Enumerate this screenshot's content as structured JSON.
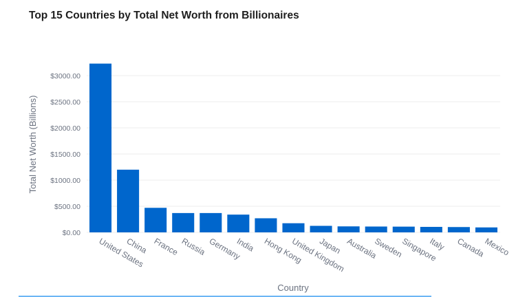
{
  "chart_data": {
    "type": "bar",
    "title": "Top 15 Countries by Total Net Worth from Billionaires",
    "xlabel": "Country",
    "ylabel": "Total Net Worth (Billions)",
    "ylim": [
      0,
      3250
    ],
    "yticks": [
      0,
      500,
      1000,
      1500,
      2000,
      2500,
      3000
    ],
    "ytick_labels": [
      "$0.00",
      "$500.00",
      "$1000.00",
      "$1500.00",
      "$2000.00",
      "$2500.00",
      "$3000.00"
    ],
    "grid": true,
    "bar_color": "#0066cc",
    "categories": [
      "United States",
      "China",
      "France",
      "Russia",
      "Germany",
      "India",
      "Hong Kong",
      "United Kingdom",
      "Japan",
      "Australia",
      "Sweden",
      "Singapore",
      "Italy",
      "Canada",
      "Mexico"
    ],
    "values": [
      3230,
      1200,
      470,
      370,
      370,
      340,
      270,
      175,
      125,
      115,
      112,
      110,
      105,
      102,
      95
    ]
  }
}
